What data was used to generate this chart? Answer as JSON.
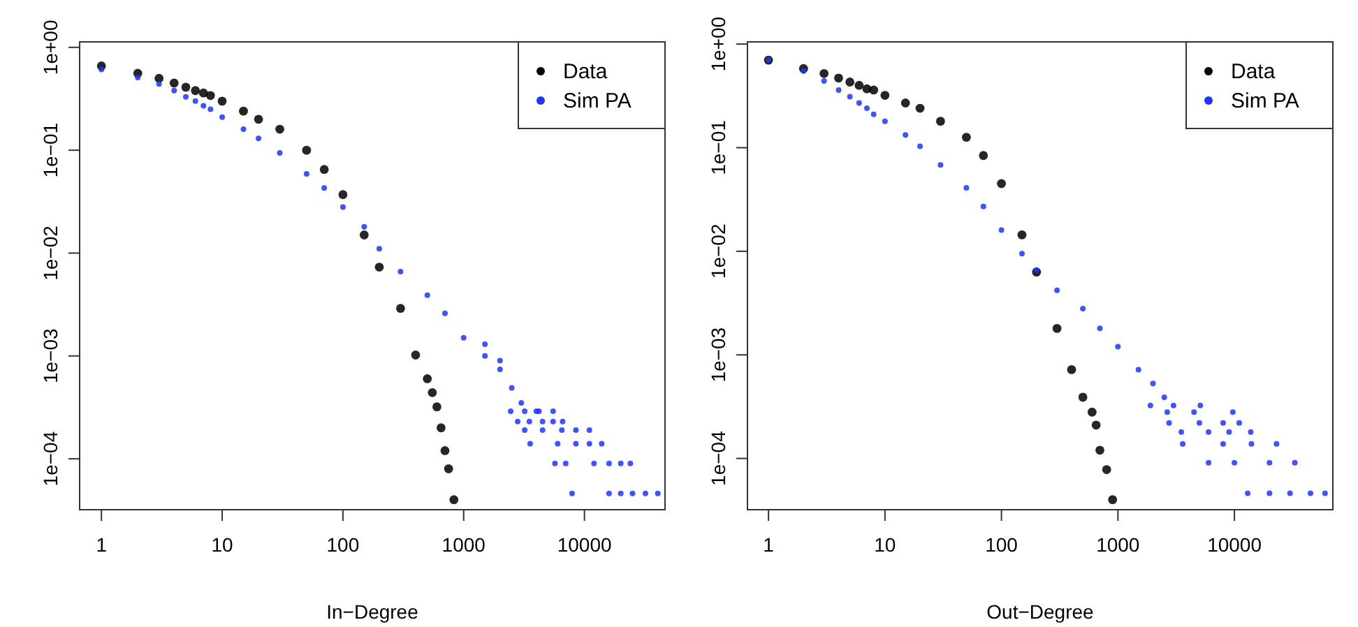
{
  "chart_data": [
    {
      "type": "scatter",
      "xlabel": "In−Degree",
      "log": "xy",
      "xlim": [
        0.66,
        46500
      ],
      "ylim": [
        3.2e-05,
        1.13
      ],
      "xticks": [
        1,
        10,
        100,
        1000,
        10000
      ],
      "yticks": [
        {
          "value": 1,
          "label": "1e+00"
        },
        {
          "value": 0.1,
          "label": "1e−01"
        },
        {
          "value": 0.01,
          "label": "1e−02"
        },
        {
          "value": 0.001,
          "label": "1e−03"
        },
        {
          "value": 0.0001,
          "label": "1e−04"
        }
      ],
      "legend": "top right",
      "marker": "circle",
      "grid": false,
      "series": [
        {
          "name": "Data",
          "color": "#000000",
          "x": [
            1,
            2,
            3,
            4,
            5,
            6,
            7,
            8,
            10,
            15,
            20,
            30,
            50,
            70,
            100,
            150,
            200,
            300,
            400,
            500,
            550,
            600,
            650,
            700,
            750,
            830
          ],
          "values": [
            0.66,
            0.56,
            0.5,
            0.45,
            0.41,
            0.38,
            0.36,
            0.34,
            0.3,
            0.24,
            0.2,
            0.16,
            0.1,
            0.065,
            0.037,
            0.015,
            0.0073,
            0.0029,
            0.00102,
            0.0006,
            0.00044,
            0.00032,
            0.0002,
            0.00012,
            8e-05,
            4e-05
          ]
        },
        {
          "name": "Sim PA",
          "color": "#1f35f5",
          "x": [
            1,
            2,
            3,
            4,
            5,
            6,
            7,
            8,
            10,
            15,
            20,
            30,
            50,
            70,
            100,
            150,
            200,
            300,
            500,
            700,
            1000,
            1500,
            1500,
            2000,
            2000,
            2500,
            3000,
            4000,
            2450,
            3200,
            4200,
            5500,
            2800,
            3500,
            4500,
            5500,
            6600,
            3200,
            4500,
            6500,
            8500,
            11000,
            3550,
            6000,
            8500,
            11000,
            13900,
            5700,
            7000,
            12000,
            16000,
            20000,
            24000,
            7900,
            16000,
            20000,
            25000,
            32000,
            40500
          ],
          "values": [
            0.61,
            0.51,
            0.44,
            0.38,
            0.33,
            0.3,
            0.27,
            0.25,
            0.21,
            0.16,
            0.13,
            0.094,
            0.059,
            0.043,
            0.028,
            0.018,
            0.011,
            0.0066,
            0.0039,
            0.0026,
            0.0015,
            0.001,
            0.0013,
            0.00074,
            0.0009,
            0.00049,
            0.00035,
            0.00029,
            0.00029,
            0.00029,
            0.00029,
            0.00029,
            0.00023,
            0.00023,
            0.00023,
            0.00023,
            0.00023,
            0.00019,
            0.00019,
            0.00019,
            0.00019,
            0.00019,
            0.00014,
            0.00014,
            0.00014,
            0.00014,
            0.00014,
            9e-05,
            9e-05,
            9e-05,
            9e-05,
            9e-05,
            9e-05,
            4.6e-05,
            4.6e-05,
            4.6e-05,
            4.6e-05,
            4.6e-05,
            4.6e-05
          ]
        }
      ]
    },
    {
      "type": "scatter",
      "xlabel": "Out−Degree",
      "log": "xy",
      "xlim": [
        0.66,
        70000
      ],
      "ylim": [
        3.2e-05,
        1.05
      ],
      "xticks": [
        1,
        10,
        100,
        1000,
        10000
      ],
      "yticks": [
        {
          "value": 1,
          "label": "1e+00"
        },
        {
          "value": 0.1,
          "label": "1e−01"
        },
        {
          "value": 0.01,
          "label": "1e−02"
        },
        {
          "value": 0.001,
          "label": "1e−03"
        },
        {
          "value": 0.0001,
          "label": "1e−04"
        }
      ],
      "legend": "top right",
      "marker": "circle",
      "grid": false,
      "series": [
        {
          "name": "Data",
          "color": "#000000",
          "x": [
            1,
            2,
            3,
            4,
            5,
            6,
            7,
            8,
            10,
            15,
            20,
            30,
            50,
            70,
            100,
            150,
            200,
            300,
            400,
            500,
            600,
            650,
            700,
            800,
            900
          ],
          "values": [
            0.7,
            0.58,
            0.52,
            0.47,
            0.43,
            0.4,
            0.37,
            0.36,
            0.32,
            0.27,
            0.24,
            0.18,
            0.126,
            0.084,
            0.045,
            0.0144,
            0.0063,
            0.0018,
            0.00072,
            0.00039,
            0.00028,
            0.00021,
            0.00012,
            7.8e-05,
            4e-05
          ]
        },
        {
          "name": "Sim PA",
          "color": "#1f35f5",
          "x": [
            1,
            2,
            3,
            4,
            5,
            6,
            7,
            8,
            10,
            15,
            20,
            30,
            50,
            70,
            100,
            150,
            200,
            300,
            500,
            700,
            1000,
            1500,
            2000,
            2500,
            1900,
            3000,
            5100,
            2650,
            4500,
            9700,
            2750,
            5000,
            8000,
            11000,
            3500,
            6000,
            9000,
            13800,
            3600,
            8000,
            14000,
            23000,
            6000,
            10000,
            20000,
            33000,
            13000,
            20000,
            30000,
            45000,
            60000
          ],
          "values": [
            0.7,
            0.55,
            0.44,
            0.36,
            0.31,
            0.27,
            0.24,
            0.21,
            0.18,
            0.133,
            0.103,
            0.068,
            0.041,
            0.027,
            0.016,
            0.0095,
            0.0066,
            0.0042,
            0.0028,
            0.0018,
            0.0012,
            0.00072,
            0.00053,
            0.00039,
            0.000325,
            0.000325,
            0.000325,
            0.00028,
            0.00028,
            0.00028,
            0.00022,
            0.00022,
            0.00022,
            0.00022,
            0.00018,
            0.00018,
            0.00018,
            0.00018,
            0.000138,
            0.000138,
            0.000138,
            0.000138,
            9.1e-05,
            9.1e-05,
            9.1e-05,
            9.1e-05,
            4.6e-05,
            4.6e-05,
            4.6e-05,
            4.6e-05,
            4.6e-05
          ]
        }
      ]
    }
  ]
}
